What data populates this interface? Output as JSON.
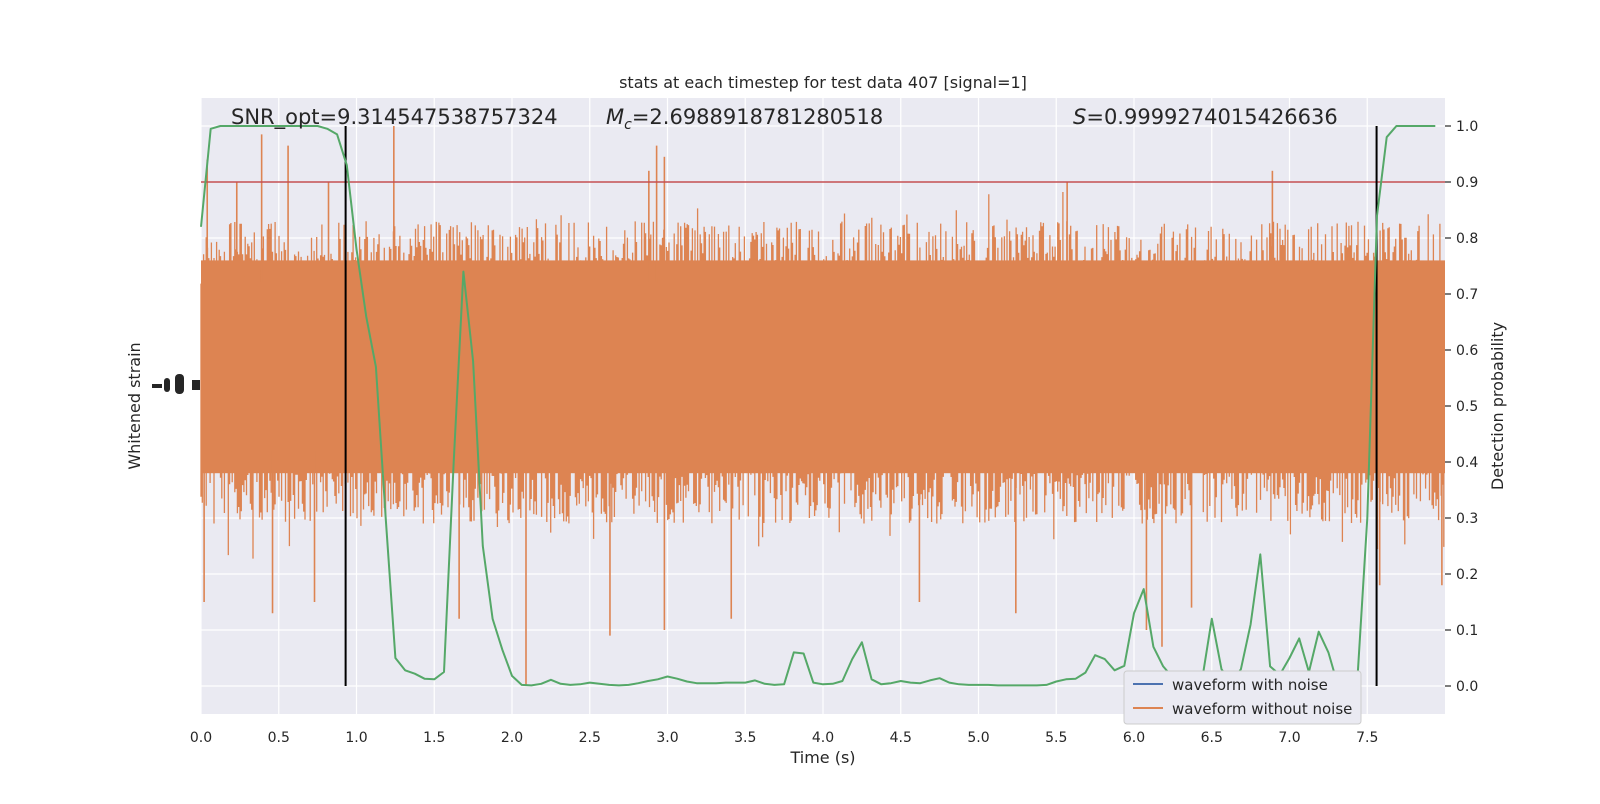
{
  "chart_data": {
    "type": "line",
    "title": "stats at each timestep for test data 407 [signal=1]",
    "xlabel": "Time (s)",
    "ylabel_left": "Whitened strain",
    "ylabel_right": "Detection probability",
    "xlim": [
      0.0,
      8.0
    ],
    "ylim_right": [
      -0.05,
      1.05
    ],
    "x_ticks": [
      0.0,
      0.5,
      1.0,
      1.5,
      2.0,
      2.5,
      3.0,
      3.5,
      4.0,
      4.5,
      5.0,
      5.5,
      6.0,
      6.5,
      7.0,
      7.5
    ],
    "x_tick_labels": [
      "0.0",
      "0.5",
      "1.0",
      "1.5",
      "2.0",
      "2.5",
      "3.0",
      "3.5",
      "4.0",
      "4.5",
      "5.0",
      "5.5",
      "6.0",
      "6.5",
      "7.0",
      "7.5"
    ],
    "y_right_ticks": [
      0.0,
      0.1,
      0.2,
      0.3,
      0.4,
      0.5,
      0.6,
      0.7,
      0.8,
      0.9,
      1.0
    ],
    "y_right_tick_labels": [
      "0.0",
      "0.1",
      "0.2",
      "0.3",
      "0.4",
      "0.5",
      "0.6",
      "0.7",
      "0.8",
      "0.9",
      "1.0"
    ],
    "grid": true,
    "legend_position": "bottom-right",
    "annotations": {
      "snr": "SNR_opt=9.314547538757324",
      "mc_symbol": "M",
      "mc_sub": "c",
      "mc_value": "=2.6988918781280518",
      "s_symbol": "S",
      "s_value": "=0.9999274015426636"
    },
    "threshold": {
      "value": 0.9,
      "color": "#c44e52"
    },
    "vertical_markers": [
      0.93,
      7.56
    ],
    "series": [
      {
        "name": "waveform with noise",
        "color": "#4c72b0"
      },
      {
        "name": "waveform without noise",
        "color": "#dd8452"
      }
    ],
    "detection_probability": {
      "color": "#55a868",
      "x": [
        0.0,
        0.0625,
        0.125,
        0.1875,
        0.25,
        0.3125,
        0.375,
        0.4375,
        0.5,
        0.5625,
        0.625,
        0.6875,
        0.75,
        0.8125,
        0.875,
        0.9375,
        1.0,
        1.0625,
        1.125,
        1.1875,
        1.25,
        1.3125,
        1.375,
        1.4375,
        1.5,
        1.5625,
        1.625,
        1.6875,
        1.75,
        1.8125,
        1.875,
        1.9375,
        2.0,
        2.0625,
        2.125,
        2.1875,
        2.25,
        2.3125,
        2.375,
        2.4375,
        2.5,
        2.5625,
        2.625,
        2.6875,
        2.75,
        2.8125,
        2.875,
        2.9375,
        3.0,
        3.0625,
        3.125,
        3.1875,
        3.25,
        3.3125,
        3.375,
        3.4375,
        3.5,
        3.5625,
        3.625,
        3.6875,
        3.75,
        3.8125,
        3.875,
        3.9375,
        4.0,
        4.0625,
        4.125,
        4.1875,
        4.25,
        4.3125,
        4.375,
        4.4375,
        4.5,
        4.5625,
        4.625,
        4.6875,
        4.75,
        4.8125,
        4.875,
        4.9375,
        5.0,
        5.0625,
        5.125,
        5.1875,
        5.25,
        5.3125,
        5.375,
        5.4375,
        5.5,
        5.5625,
        5.625,
        5.6875,
        5.75,
        5.8125,
        5.875,
        5.9375,
        6.0,
        6.0625,
        6.125,
        6.1875,
        6.25,
        6.3125,
        6.375,
        6.4375,
        6.5,
        6.5625,
        6.625,
        6.6875,
        6.75,
        6.8125,
        6.875,
        6.9375,
        7.0,
        7.0625,
        7.125,
        7.1875,
        7.25,
        7.3125,
        7.375,
        7.4375,
        7.5,
        7.5625,
        7.625,
        7.6875,
        7.75,
        7.8125,
        7.875,
        7.9375
      ],
      "y": [
        0.82,
        0.995,
        1.0,
        1.0,
        1.0,
        1.0,
        1.0,
        1.0,
        1.0,
        1.0,
        1.0,
        1.0,
        1.0,
        0.995,
        0.985,
        0.93,
        0.78,
        0.66,
        0.57,
        0.3,
        0.05,
        0.028,
        0.022,
        0.013,
        0.012,
        0.025,
        0.4,
        0.74,
        0.58,
        0.25,
        0.12,
        0.065,
        0.018,
        0.002,
        0.001,
        0.004,
        0.011,
        0.004,
        0.002,
        0.003,
        0.006,
        0.004,
        0.002,
        0.001,
        0.002,
        0.005,
        0.009,
        0.012,
        0.017,
        0.013,
        0.008,
        0.005,
        0.005,
        0.005,
        0.006,
        0.006,
        0.006,
        0.01,
        0.004,
        0.002,
        0.003,
        0.06,
        0.058,
        0.006,
        0.003,
        0.004,
        0.009,
        0.048,
        0.078,
        0.012,
        0.003,
        0.005,
        0.009,
        0.006,
        0.005,
        0.01,
        0.014,
        0.006,
        0.003,
        0.002,
        0.002,
        0.002,
        0.001,
        0.001,
        0.001,
        0.001,
        0.001,
        0.002,
        0.008,
        0.012,
        0.013,
        0.024,
        0.055,
        0.048,
        0.028,
        0.036,
        0.13,
        0.173,
        0.07,
        0.035,
        0.015,
        0.012,
        0.006,
        0.01,
        0.12,
        0.03,
        0.005,
        0.03,
        0.11,
        0.235,
        0.035,
        0.02,
        0.05,
        0.085,
        0.025,
        0.097,
        0.06,
        0.0,
        0.0,
        0.015,
        0.3,
        0.84,
        0.98,
        1.0,
        1.0,
        1.0,
        1.0,
        1.0
      ]
    },
    "strain_envelope": {
      "note": "",
      "spikes_top": [
        {
          "x": 0.04,
          "y": 0.94
        },
        {
          "x": 0.39,
          "y": 0.985
        },
        {
          "x": 0.56,
          "y": 0.965
        },
        {
          "x": 0.23,
          "y": 0.9
        },
        {
          "x": 1.24,
          "y": 1.0
        },
        {
          "x": 2.93,
          "y": 0.965
        },
        {
          "x": 2.98,
          "y": 0.945
        },
        {
          "x": 2.88,
          "y": 0.92
        },
        {
          "x": 5.57,
          "y": 0.9
        },
        {
          "x": 6.89,
          "y": 0.92
        },
        {
          "x": 0.82,
          "y": 0.9
        }
      ],
      "spikes_bottom": [
        {
          "x": 0.02,
          "y": 0.15
        },
        {
          "x": 0.46,
          "y": 0.13
        },
        {
          "x": 0.73,
          "y": 0.15
        },
        {
          "x": 2.09,
          "y": 0.0
        },
        {
          "x": 1.66,
          "y": 0.12
        },
        {
          "x": 2.63,
          "y": 0.09
        },
        {
          "x": 2.98,
          "y": 0.1
        },
        {
          "x": 3.41,
          "y": 0.12
        },
        {
          "x": 6.18,
          "y": 0.07
        },
        {
          "x": 6.08,
          "y": 0.1
        },
        {
          "x": 4.62,
          "y": 0.15
        },
        {
          "x": 5.24,
          "y": 0.13
        },
        {
          "x": 7.98,
          "y": 0.18
        },
        {
          "x": 7.58,
          "y": 0.18
        },
        {
          "x": 6.37,
          "y": 0.14
        }
      ]
    }
  }
}
